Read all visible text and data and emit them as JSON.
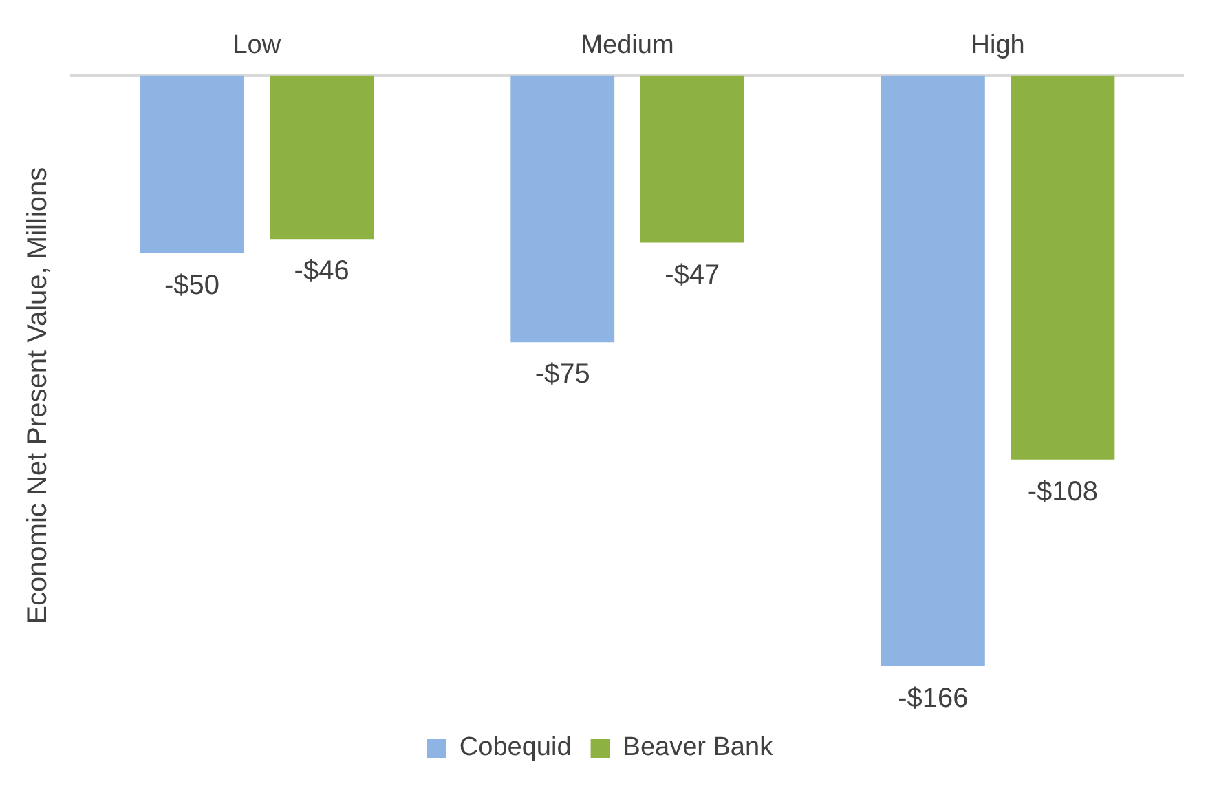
{
  "chart_data": {
    "type": "bar",
    "ylabel": "Economic Net Present Value, Millions",
    "categories": [
      "Low",
      "Medium",
      "High"
    ],
    "series": [
      {
        "name": "Cobequid",
        "color": "#8eb4e3",
        "values": [
          -50,
          -75,
          -166
        ],
        "value_labels": [
          "-$50",
          "-$75",
          "-$166"
        ]
      },
      {
        "name": "Beaver Bank",
        "color": "#8db241",
        "values": [
          -46,
          -47,
          -108
        ],
        "value_labels": [
          "-$46",
          "-$47",
          "-$108"
        ]
      }
    ],
    "grid": false,
    "legend": "bottom"
  }
}
